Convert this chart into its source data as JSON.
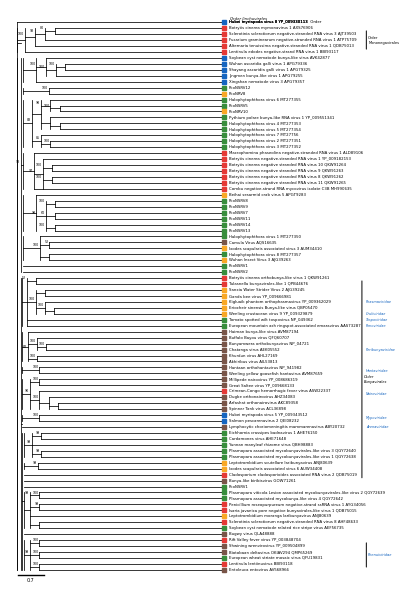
{
  "title": "Maximum Likelihood Tree Raxml Depicting The Phylogenic Relationship",
  "scale_bar": "0.7",
  "background": "#ffffff",
  "taxa": [
    {
      "name": "Hubei myriapoda virus 8 YP_009330113",
      "color": "#1565c0",
      "idx": 0
    },
    {
      "name": "Botrytis cinerea mymonavirus 1 AXS76906",
      "color": "#e53935",
      "idx": 1
    },
    {
      "name": "Sclerotinia sclerotiorum negative-stranded RNA virus 3 AJT39503",
      "color": "#e53935",
      "idx": 2
    },
    {
      "name": "Fusarium graminearum negative-stranded RNA virus 1 ATP75709",
      "color": "#e53935",
      "idx": 3
    },
    {
      "name": "Alternaria tenuissima negative-stranded RNA virus 1 QDB75013",
      "color": "#e53935",
      "idx": 4
    },
    {
      "name": "Lentinula edodes negative-strand RNA virus 1 BBI93117",
      "color": "#e53935",
      "idx": 5
    },
    {
      "name": "Soybean cyst nematode bunya-like virus AVK42877",
      "color": "#1565c0",
      "idx": 6
    },
    {
      "name": "Wuhan ascaridia galli virus 1 APG79336",
      "color": "#1565c0",
      "idx": 7
    },
    {
      "name": "Shayang ascaridia galli virus 1 APG79325",
      "color": "#1565c0",
      "idx": 8
    },
    {
      "name": "Jingmen bunya-like virus 1 APG79255",
      "color": "#1565c0",
      "idx": 9
    },
    {
      "name": "Xingshan nematode virus 3 APG79357",
      "color": "#1565c0",
      "idx": 10
    },
    {
      "name": "PcoNSRV12",
      "color": "#388e3c",
      "idx": 11
    },
    {
      "name": "PcoNRV8",
      "color": "#f9a825",
      "idx": 12
    },
    {
      "name": "Halophytophthora virus 6 MT277355",
      "color": "#388e3c",
      "idx": 13
    },
    {
      "name": "PcoNSRV5",
      "color": "#388e3c",
      "idx": 14
    },
    {
      "name": "PcoNRV10",
      "color": "#f9a825",
      "idx": 15
    },
    {
      "name": "Pythium polare bunya-like RNA virus 1 YP_009551341",
      "color": "#388e3c",
      "idx": 16
    },
    {
      "name": "Halophytophthora virus 4 MT277353",
      "color": "#388e3c",
      "idx": 17
    },
    {
      "name": "Halophytophthora virus 5 MT277354",
      "color": "#388e3c",
      "idx": 18
    },
    {
      "name": "Halophytophthora virus 7 MT27756",
      "color": "#388e3c",
      "idx": 19
    },
    {
      "name": "Halophytophthora virus 2 MT277351",
      "color": "#388e3c",
      "idx": 20
    },
    {
      "name": "Halophytophthora virus 3 MT277352",
      "color": "#388e3c",
      "idx": 21
    },
    {
      "name": "Macrophomina phaseolina negative-stranded RNA virus 1 ALD89106",
      "color": "#e53935",
      "idx": 22
    },
    {
      "name": "Botrytis cinerea negative-stranded RNA virus 1 YP_009182153",
      "color": "#e53935",
      "idx": 23
    },
    {
      "name": "Botrytis cinerea negative stranded RNA virus 10 QKW91264",
      "color": "#e53935",
      "idx": 24
    },
    {
      "name": "Botrytis cinerea negative stranded RNA virus 9 QKW91263",
      "color": "#e53935",
      "idx": 25
    },
    {
      "name": "Botrytis cinerea negative stranded RNA virus 8 QKW91262",
      "color": "#e53935",
      "idx": 26
    },
    {
      "name": "Botrytis cinerea negative stranded RNA virus 11 QKW91265",
      "color": "#e53935",
      "idx": 27
    },
    {
      "name": "Combu negative-strand RNA mycovirus isolate C3B MH990635",
      "color": "#e53935",
      "idx": 28
    },
    {
      "name": "Beihai sesarmid crab virus 5 APGT9283",
      "color": "#f9a825",
      "idx": 29
    },
    {
      "name": "PcoNSRV8",
      "color": "#388e3c",
      "idx": 30
    },
    {
      "name": "PcoNSRV9",
      "color": "#388e3c",
      "idx": 31
    },
    {
      "name": "PcoNSRV7",
      "color": "#388e3c",
      "idx": 32
    },
    {
      "name": "PcoNSRV11",
      "color": "#388e3c",
      "idx": 33
    },
    {
      "name": "PcoNSRV14",
      "color": "#388e3c",
      "idx": 34
    },
    {
      "name": "PcoNSRV13",
      "color": "#388e3c",
      "idx": 35
    },
    {
      "name": "Halophytophthora virus 1 MT277350",
      "color": "#388e3c",
      "idx": 36
    },
    {
      "name": "Camula Virus AQS16635",
      "color": "#795548",
      "idx": 37
    },
    {
      "name": "Ixodes scapularis associated virus 3 AUM34410",
      "color": "#f9a825",
      "idx": 38
    },
    {
      "name": "Halophytophthora virus 8 MT277357",
      "color": "#388e3c",
      "idx": 39
    },
    {
      "name": "Wuhan Insect Virus 3 AJG39263",
      "color": "#f9a825",
      "idx": 40
    },
    {
      "name": "PcoNSRV1",
      "color": "#388e3c",
      "idx": 41
    },
    {
      "name": "PcoNSRV2",
      "color": "#388e3c",
      "idx": 42
    },
    {
      "name": "Botrytis cinerea orthobunya-like virus 1 QKW91261",
      "color": "#e53935",
      "idx": 43
    },
    {
      "name": "Tulasnella bunyavirales-like 1 QPB44676",
      "color": "#e53935",
      "idx": 44
    },
    {
      "name": "Sanxia Water Strider Virus 2 AJG39245",
      "color": "#f9a825",
      "idx": 45
    },
    {
      "name": "Ganda bee virus YP_009666981",
      "color": "#f9a825",
      "idx": 46
    },
    {
      "name": "Kigluaik phantom orthophasmavirus YP_009362029",
      "color": "#f9a825",
      "idx": 47
    },
    {
      "name": "Eriocheir sinensis Bunya-like virus QBP05470",
      "color": "#f9a825",
      "idx": 48
    },
    {
      "name": "Wenling crustacean virus 9 YP_009329879",
      "color": "#f9a825",
      "idx": 49
    },
    {
      "name": "Tomato spotted wilt tospovirus NP_049362",
      "color": "#388e3c",
      "idx": 50
    },
    {
      "name": "European mountain ash ringspot-associated emaravirus AAS73287",
      "color": "#388e3c",
      "idx": 51
    },
    {
      "name": "Hairnan bunya-like virus AVM87194",
      "color": "#795548",
      "idx": 52
    },
    {
      "name": "Buffalo Bayou virus QFQ60707",
      "color": "#795548",
      "idx": 53
    },
    {
      "name": "Bunyamwera orthobunyavirus NP_04721",
      "color": "#795548",
      "idx": 54
    },
    {
      "name": "Chatanga virus AEK05552",
      "color": "#795548",
      "idx": 55
    },
    {
      "name": "Khurdun virus AHL27169",
      "color": "#795548",
      "idx": 56
    },
    {
      "name": "Akhiribus virus AIL53813",
      "color": "#795548",
      "idx": 57
    },
    {
      "name": "Hantaan orthohantavirus NP_941982",
      "color": "#795548",
      "idx": 58
    },
    {
      "name": "Wenling yellow goosefish hantavirus AVM87659",
      "color": "#795548",
      "idx": 59
    },
    {
      "name": "Millipede nairovirus YP_008686319",
      "color": "#795548",
      "idx": 60
    },
    {
      "name": "Great Saltee virus YP_009668133",
      "color": "#795548",
      "idx": 61
    },
    {
      "name": "Crimean-Congo hemorrhagic fever virus ASW22337",
      "color": "#e53935",
      "idx": 62
    },
    {
      "name": "Dugbe orthonairovirus AHZ34083",
      "color": "#795548",
      "idx": 63
    },
    {
      "name": "Arfashat orthonairovirus AKC89358",
      "color": "#795548",
      "idx": 64
    },
    {
      "name": "Spinner Tank virus ACL36898",
      "color": "#795548",
      "idx": 65
    },
    {
      "name": "Hubei myriapoda virus 5 YP_009343512",
      "color": "#1565c0",
      "idx": 66
    },
    {
      "name": "Salmon pescarenavirus 2 QEI08232",
      "color": "#1565c0",
      "idx": 67
    },
    {
      "name": "Lymphocytic choriomeningitis mammarenavirus ABY20732",
      "color": "#795548",
      "idx": 68
    },
    {
      "name": "Eichhornia crassipes badnavirus 1 AHE76150",
      "color": "#388e3c",
      "idx": 69
    },
    {
      "name": "Cardamones virus AHE71648",
      "color": "#388e3c",
      "idx": 70
    },
    {
      "name": "Yunnan manyleaf rhizome virus QBH98883",
      "color": "#388e3c",
      "idx": 71
    },
    {
      "name": "Plasmopara associated mycobunyavirales-like virus 3 QGY72640",
      "color": "#388e3c",
      "idx": 72
    },
    {
      "name": "Plasmopara associated mycobunyavirales-like virus 1 QGY72638",
      "color": "#388e3c",
      "idx": 73
    },
    {
      "name": "Leptotrombidium scutellare laribunyavirus ANJ80639",
      "color": "#f9a825",
      "idx": 74
    },
    {
      "name": "Ixodes scapularis associated virus 6 AUW34408",
      "color": "#f9a825",
      "idx": 75
    },
    {
      "name": "Cladosporium cladosporioides associated RNA virus 2 QDB75019",
      "color": "#e53935",
      "idx": 76
    },
    {
      "name": "Bunya-like biribisvirus GOW71261",
      "color": "#795548",
      "idx": 77
    },
    {
      "name": "PcoNSRV1",
      "color": "#388e3c",
      "idx": 78
    },
    {
      "name": "Plasmopara viticola Lesion associated mycobunyavirales-like virus 2 QGY72639",
      "color": "#388e3c",
      "idx": 79
    },
    {
      "name": "Plasmopara associated mycobunya-like virus 4 QGY72642",
      "color": "#388e3c",
      "idx": 80
    },
    {
      "name": "Penicillium roseopurpureum negative-strand ssRNA virus 1 AYG34056",
      "color": "#e53935",
      "idx": 81
    },
    {
      "name": "Isaria javanica pore negative bunyavirales-like virus 1 QDB75015",
      "color": "#e53935",
      "idx": 82
    },
    {
      "name": "Leptotrombidium moranga laribunyavirus ANJ80639",
      "color": "#f9a825",
      "idx": 83
    },
    {
      "name": "Sclerotinia sclerotiorum negative-stranded RNA virus 8 AHF48633",
      "color": "#e53935",
      "idx": 84
    },
    {
      "name": "Soybean cyst nematode related rice stripe virus AEF56735",
      "color": "#388e3c",
      "idx": 85
    },
    {
      "name": "Bugwy virus QLA48888",
      "color": "#795548",
      "idx": 86
    },
    {
      "name": "Rift Valley fever virus YP_003848704",
      "color": "#e53935",
      "idx": 87
    },
    {
      "name": "Shwining wrenvirovirus YP_009504899",
      "color": "#795548",
      "idx": 88
    },
    {
      "name": "Biotobaan deltavirus OKIAV294 QMP65269",
      "color": "#795548",
      "idx": 89
    },
    {
      "name": "European wheat striate mosaic virus QFU19831",
      "color": "#388e3c",
      "idx": 90
    },
    {
      "name": "Lentinula lentiinuvirus BBI93118",
      "color": "#e53935",
      "idx": 91
    },
    {
      "name": "Entoleuca entovirus AV568966",
      "color": "#795548",
      "idx": 92
    }
  ],
  "annotations": [
    {
      "text": "Order Jinchuvirales",
      "italic": true,
      "color": "black",
      "taxon_idx": 0,
      "side": "right",
      "fs": 3.2
    },
    {
      "text": "Order\nMononegavirales",
      "italic": false,
      "color": "black",
      "taxon_range": [
        1,
        5
      ],
      "side": "bracket_right",
      "fs": 2.8
    },
    {
      "text": "Phasmaviridae",
      "italic": true,
      "color": "#1565c0",
      "taxon_range": [
        45,
        49
      ],
      "side": "right_label",
      "fs": 2.8
    },
    {
      "text": "Cruliviridae",
      "italic": true,
      "color": "#1565c0",
      "taxon_idx": 49,
      "side": "right_label",
      "fs": 2.8
    },
    {
      "text": "Tospoviridae",
      "italic": true,
      "color": "#1565c0",
      "taxon_idx": 50,
      "side": "right_label",
      "fs": 2.8
    },
    {
      "text": "Fimoviridae",
      "italic": true,
      "color": "#1565c0",
      "taxon_idx": 51,
      "side": "right_label",
      "fs": 2.8
    },
    {
      "text": "Peribunyaviridae",
      "italic": true,
      "color": "#1565c0",
      "taxon_range": [
        53,
        57
      ],
      "side": "right_label",
      "fs": 2.8
    },
    {
      "text": "Hantaviridae",
      "italic": true,
      "color": "#1565c0",
      "taxon_range": [
        58,
        59
      ],
      "side": "right_label",
      "fs": 2.8
    },
    {
      "text": "Nairoviridae",
      "italic": true,
      "color": "#1565c0",
      "taxon_range": [
        60,
        65
      ],
      "side": "right_label",
      "fs": 2.8
    },
    {
      "text": "Mypoviridae",
      "italic": true,
      "color": "#1565c0",
      "taxon_range": [
        66,
        67
      ],
      "side": "right_label",
      "fs": 2.8
    },
    {
      "text": "Arenaviridae",
      "italic": true,
      "color": "#1565c0",
      "taxon_range": [
        68,
        68
      ],
      "side": "right_label",
      "fs": 2.8
    },
    {
      "text": "Order\nBunyavirales",
      "italic": true,
      "color": "black",
      "taxon_range": [
        43,
        77
      ],
      "side": "bracket_right",
      "fs": 2.8
    },
    {
      "text": "Phenuiviridae",
      "italic": true,
      "color": "#1565c0",
      "taxon_range": [
        87,
        92
      ],
      "side": "bracket_right",
      "fs": 2.8
    }
  ]
}
